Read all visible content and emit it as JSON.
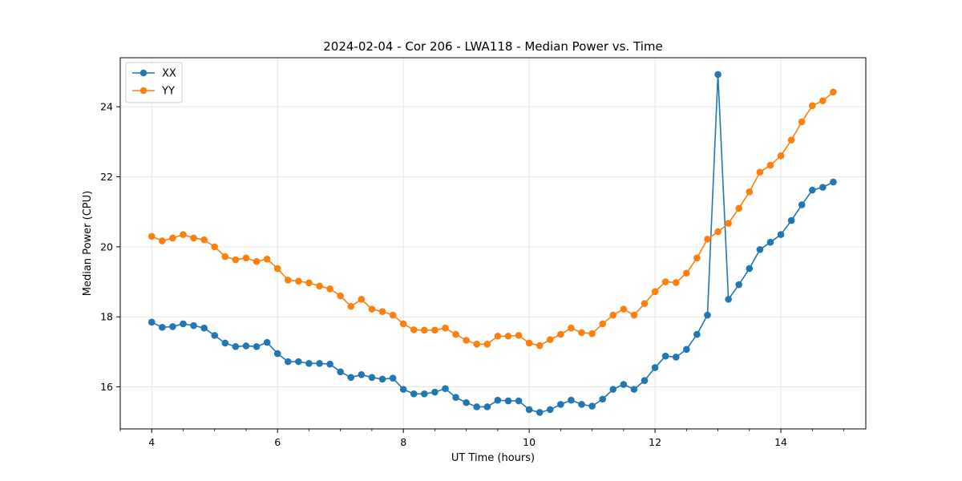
{
  "chart_data": {
    "type": "line",
    "title": "2024-02-04 - Cor 206 - LWA118 - Median Power vs. Time",
    "xlabel": "UT Time (hours)",
    "ylabel": "Median Power (CPU)",
    "xlim": [
      3.5,
      15.35
    ],
    "ylim": [
      14.8,
      25.4
    ],
    "xticks": [
      4,
      6,
      8,
      10,
      12,
      14
    ],
    "yticks": [
      16,
      18,
      20,
      22,
      24
    ],
    "x_minor_step": 0.5,
    "grid": true,
    "legend_position": "top-left",
    "x": [
      4.0,
      4.1667,
      4.3333,
      4.5,
      4.6667,
      4.8333,
      5.0,
      5.1667,
      5.3333,
      5.5,
      5.6667,
      5.8333,
      6.0,
      6.1667,
      6.3333,
      6.5,
      6.6667,
      6.8333,
      7.0,
      7.1667,
      7.3333,
      7.5,
      7.6667,
      7.8333,
      8.0,
      8.1667,
      8.3333,
      8.5,
      8.6667,
      8.8333,
      9.0,
      9.1667,
      9.3333,
      9.5,
      9.6667,
      9.8333,
      10.0,
      10.1667,
      10.3333,
      10.5,
      10.6667,
      10.8333,
      11.0,
      11.1667,
      11.3333,
      11.5,
      11.6667,
      11.8333,
      12.0,
      12.1667,
      12.3333,
      12.5,
      12.6667,
      12.8333,
      13.0,
      13.1667,
      13.3333,
      13.5,
      13.6667,
      13.8333,
      14.0,
      14.1667,
      14.3333,
      14.5,
      14.6667,
      14.8333
    ],
    "series": [
      {
        "name": "XX",
        "color": "#1f77b4",
        "values": [
          17.85,
          17.7,
          17.72,
          17.8,
          17.75,
          17.68,
          17.47,
          17.25,
          17.15,
          17.17,
          17.15,
          17.27,
          16.95,
          16.72,
          16.72,
          16.67,
          16.67,
          16.65,
          16.43,
          16.27,
          16.35,
          16.27,
          16.22,
          16.25,
          15.93,
          15.8,
          15.8,
          15.85,
          15.95,
          15.7,
          15.55,
          15.43,
          15.43,
          15.62,
          15.6,
          15.6,
          15.35,
          15.27,
          15.35,
          15.5,
          15.62,
          15.5,
          15.45,
          15.65,
          15.93,
          16.07,
          15.93,
          16.18,
          16.55,
          16.88,
          16.85,
          17.07,
          17.5,
          18.05,
          24.92,
          18.5,
          18.92,
          19.38,
          19.92,
          20.13,
          20.35,
          20.75,
          21.2,
          21.62,
          21.7,
          21.85
        ]
      },
      {
        "name": "YY",
        "color": "#ff7f0e",
        "values": [
          20.3,
          20.17,
          20.25,
          20.35,
          20.25,
          20.2,
          20.0,
          19.72,
          19.63,
          19.68,
          19.58,
          19.65,
          19.38,
          19.05,
          19.02,
          18.97,
          18.88,
          18.8,
          18.6,
          18.3,
          18.5,
          18.22,
          18.15,
          18.05,
          17.8,
          17.63,
          17.62,
          17.62,
          17.68,
          17.5,
          17.33,
          17.22,
          17.22,
          17.45,
          17.45,
          17.47,
          17.25,
          17.18,
          17.35,
          17.5,
          17.68,
          17.55,
          17.52,
          17.8,
          18.05,
          18.22,
          18.05,
          18.38,
          18.72,
          19.0,
          18.98,
          19.25,
          19.68,
          20.22,
          20.43,
          20.67,
          21.1,
          21.57,
          22.13,
          22.33,
          22.6,
          23.05,
          23.57,
          24.03,
          24.17,
          24.42
        ]
      }
    ]
  }
}
